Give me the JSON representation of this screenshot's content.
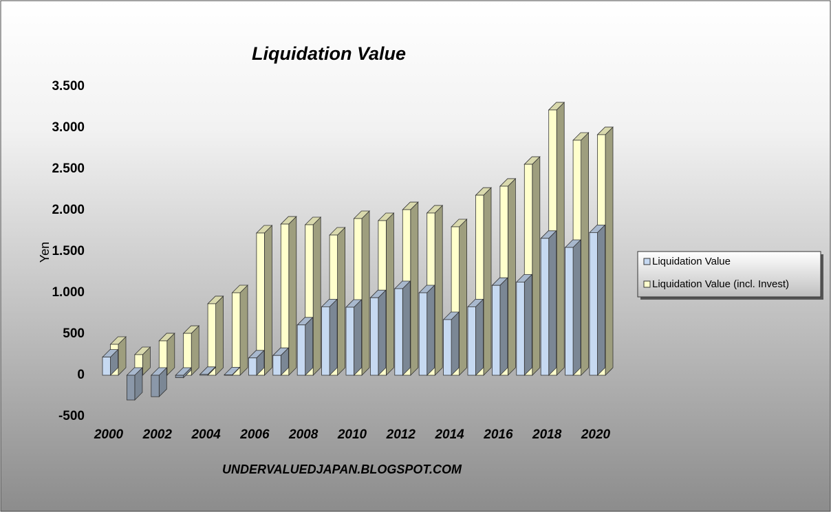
{
  "chart_data": {
    "type": "bar3d",
    "title": "Liquidation Value",
    "ylabel": "Yen",
    "footer": "UNDERVALUEDJAPAN.BLOGSPOT.COM",
    "categories": [
      "2000",
      null,
      "2002",
      null,
      "2004",
      null,
      "2006",
      null,
      "2008",
      null,
      "2010",
      null,
      "2012",
      null,
      "2014",
      null,
      "2016",
      null,
      "2018",
      null,
      "2020"
    ],
    "series": [
      {
        "name": "Liquidation Value",
        "color": "#c6d9f1",
        "values": [
          220,
          -300,
          -260,
          -30,
          10,
          5,
          210,
          240,
          610,
          830,
          825,
          940,
          1050,
          1000,
          675,
          830,
          1090,
          1130,
          1660,
          1550,
          1730
        ]
      },
      {
        "name": "Liquidation Value (incl. Invest)",
        "color": "#ffffcc",
        "values": [
          375,
          250,
          417,
          508,
          867,
          1000,
          1725,
          1833,
          1825,
          1700,
          1900,
          1875,
          2008,
          1967,
          1800,
          2183,
          2292,
          2558,
          3217,
          2850,
          2917
        ]
      }
    ],
    "ylim": [
      -500,
      3500
    ],
    "yticks": [
      -500,
      0,
      500,
      {
        "value": 1000,
        "label": "1.000"
      },
      {
        "value": 1500,
        "label": "1.500"
      },
      {
        "value": 2000,
        "label": "2.000"
      },
      {
        "value": 2500,
        "label": "2.500"
      },
      {
        "value": 3000,
        "label": "3.000"
      },
      {
        "value": 3500,
        "label": "3.500"
      }
    ],
    "legend": "right"
  }
}
